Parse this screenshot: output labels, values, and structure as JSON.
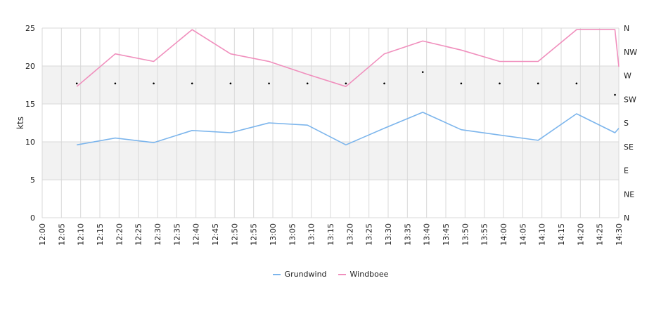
{
  "chart_data": {
    "type": "line",
    "ylabel": "kts",
    "ylim": [
      0,
      25
    ],
    "yticks": [
      0,
      5,
      10,
      15,
      20,
      25
    ],
    "x_range": [
      "12:00",
      "14:30"
    ],
    "x_ticks": [
      "12:00",
      "12:05",
      "12:10",
      "12:15",
      "12:20",
      "12:25",
      "12:30",
      "12:35",
      "12:40",
      "12:45",
      "12:50",
      "12:55",
      "13:00",
      "13:05",
      "13:10",
      "13:15",
      "13:20",
      "13:25",
      "13:30",
      "13:35",
      "13:40",
      "13:45",
      "13:50",
      "13:55",
      "14:00",
      "14:05",
      "14:10",
      "14:15",
      "14:20",
      "14:25",
      "14:30"
    ],
    "direction_axis": [
      "N",
      "NE",
      "E",
      "SE",
      "S",
      "SW",
      "W",
      "NW",
      "N"
    ],
    "grid": true,
    "legend_position": "bottom-center",
    "series": [
      {
        "name": "Grundwind",
        "color": "#7cb5ec",
        "x": [
          "12:09",
          "12:19",
          "12:29",
          "12:39",
          "12:49",
          "12:59",
          "13:09",
          "13:19",
          "13:29",
          "13:39",
          "13:49",
          "13:59",
          "14:09",
          "14:19",
          "14:29",
          "14:30"
        ],
        "values": [
          9.6,
          10.5,
          9.9,
          11.5,
          11.2,
          12.5,
          12.2,
          9.6,
          11.8,
          13.9,
          11.6,
          10.9,
          10.2,
          13.7,
          11.2,
          11.8
        ]
      },
      {
        "name": "Windboee",
        "color": "#f08fbd",
        "x": [
          "12:09",
          "12:19",
          "12:29",
          "12:39",
          "12:49",
          "12:59",
          "13:09",
          "13:19",
          "13:29",
          "13:39",
          "13:49",
          "13:59",
          "14:09",
          "14:19",
          "14:29",
          "14:30"
        ],
        "values": [
          17.3,
          21.6,
          20.6,
          24.8,
          21.6,
          20.6,
          18.9,
          17.3,
          21.6,
          23.3,
          22.1,
          20.6,
          20.6,
          24.8,
          24.8,
          19.9
        ]
      }
    ],
    "direction_markers": {
      "x": [
        "12:09",
        "12:19",
        "12:29",
        "12:39",
        "12:49",
        "12:59",
        "13:09",
        "13:19",
        "13:29",
        "13:39",
        "13:49",
        "13:59",
        "14:09",
        "14:19",
        "14:29"
      ],
      "values": [
        17.7,
        17.7,
        17.7,
        17.7,
        17.7,
        17.7,
        17.7,
        17.7,
        17.7,
        19.2,
        17.7,
        17.7,
        17.7,
        17.7,
        16.2
      ]
    }
  }
}
